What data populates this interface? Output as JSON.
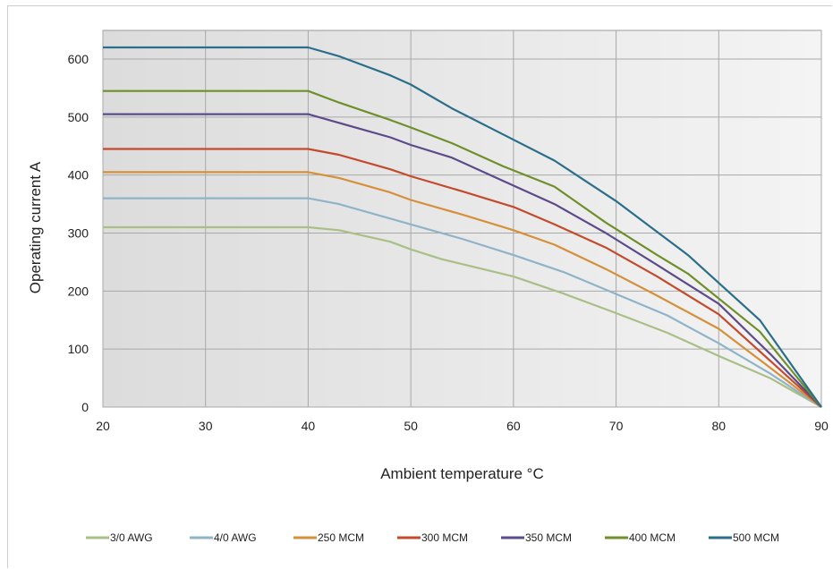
{
  "chart_data": {
    "type": "line",
    "xlabel": "Ambient temperature °C",
    "ylabel": "Operating current A",
    "xlim": [
      20,
      90
    ],
    "ylim": [
      0,
      650
    ],
    "x_ticks": [
      "20",
      "30",
      "40",
      "50",
      "60",
      "70",
      "80",
      "90"
    ],
    "y_ticks": [
      "0",
      "100",
      "200",
      "300",
      "400",
      "500",
      "600"
    ],
    "grid": true,
    "legend_position": "bottom",
    "series": [
      {
        "name": "3/0 AWG",
        "color": "#a9bf86",
        "points": [
          [
            20,
            310
          ],
          [
            40,
            310
          ],
          [
            43,
            305
          ],
          [
            48,
            285
          ],
          [
            50,
            272
          ],
          [
            53,
            255
          ],
          [
            60,
            225
          ],
          [
            65,
            195
          ],
          [
            70,
            162
          ],
          [
            75,
            128
          ],
          [
            80,
            88
          ],
          [
            85,
            50
          ],
          [
            90,
            0
          ]
        ]
      },
      {
        "name": "4/0 AWG",
        "color": "#8fb3c8",
        "points": [
          [
            20,
            360
          ],
          [
            40,
            360
          ],
          [
            43,
            350
          ],
          [
            48,
            325
          ],
          [
            50,
            315
          ],
          [
            55,
            290
          ],
          [
            60,
            262
          ],
          [
            65,
            232
          ],
          [
            70,
            195
          ],
          [
            75,
            158
          ],
          [
            80,
            110
          ],
          [
            85,
            58
          ],
          [
            90,
            0
          ]
        ]
      },
      {
        "name": "250 MCM",
        "color": "#d68f3a",
        "points": [
          [
            20,
            405
          ],
          [
            40,
            405
          ],
          [
            43,
            395
          ],
          [
            48,
            370
          ],
          [
            50,
            357
          ],
          [
            55,
            332
          ],
          [
            60,
            305
          ],
          [
            64,
            280
          ],
          [
            69,
            238
          ],
          [
            74,
            192
          ],
          [
            80,
            135
          ],
          [
            85,
            68
          ],
          [
            90,
            0
          ]
        ]
      },
      {
        "name": "300 MCM",
        "color": "#c44a2c",
        "points": [
          [
            20,
            445
          ],
          [
            40,
            445
          ],
          [
            43,
            435
          ],
          [
            48,
            410
          ],
          [
            50,
            398
          ],
          [
            55,
            372
          ],
          [
            60,
            345
          ],
          [
            64,
            315
          ],
          [
            69,
            275
          ],
          [
            74,
            225
          ],
          [
            80,
            160
          ],
          [
            85,
            80
          ],
          [
            90,
            0
          ]
        ]
      },
      {
        "name": "350 MCM",
        "color": "#5b4b8a",
        "points": [
          [
            20,
            505
          ],
          [
            40,
            505
          ],
          [
            43,
            490
          ],
          [
            48,
            465
          ],
          [
            50,
            452
          ],
          [
            54,
            430
          ],
          [
            59,
            390
          ],
          [
            64,
            350
          ],
          [
            69,
            300
          ],
          [
            74,
            245
          ],
          [
            80,
            178
          ],
          [
            85,
            92
          ],
          [
            90,
            0
          ]
        ]
      },
      {
        "name": "400 MCM",
        "color": "#6f8f2a",
        "points": [
          [
            20,
            545
          ],
          [
            40,
            545
          ],
          [
            43,
            525
          ],
          [
            48,
            495
          ],
          [
            50,
            482
          ],
          [
            54,
            455
          ],
          [
            59,
            415
          ],
          [
            64,
            380
          ],
          [
            69,
            318
          ],
          [
            74,
            262
          ],
          [
            77,
            230
          ],
          [
            84,
            130
          ],
          [
            90,
            0
          ]
        ]
      },
      {
        "name": "500 MCM",
        "color": "#2a6f8a",
        "points": [
          [
            20,
            620
          ],
          [
            40,
            620
          ],
          [
            43,
            605
          ],
          [
            48,
            572
          ],
          [
            50,
            556
          ],
          [
            54,
            515
          ],
          [
            59,
            470
          ],
          [
            64,
            425
          ],
          [
            70,
            355
          ],
          [
            77,
            262
          ],
          [
            84,
            150
          ],
          [
            90,
            0
          ]
        ]
      }
    ]
  }
}
